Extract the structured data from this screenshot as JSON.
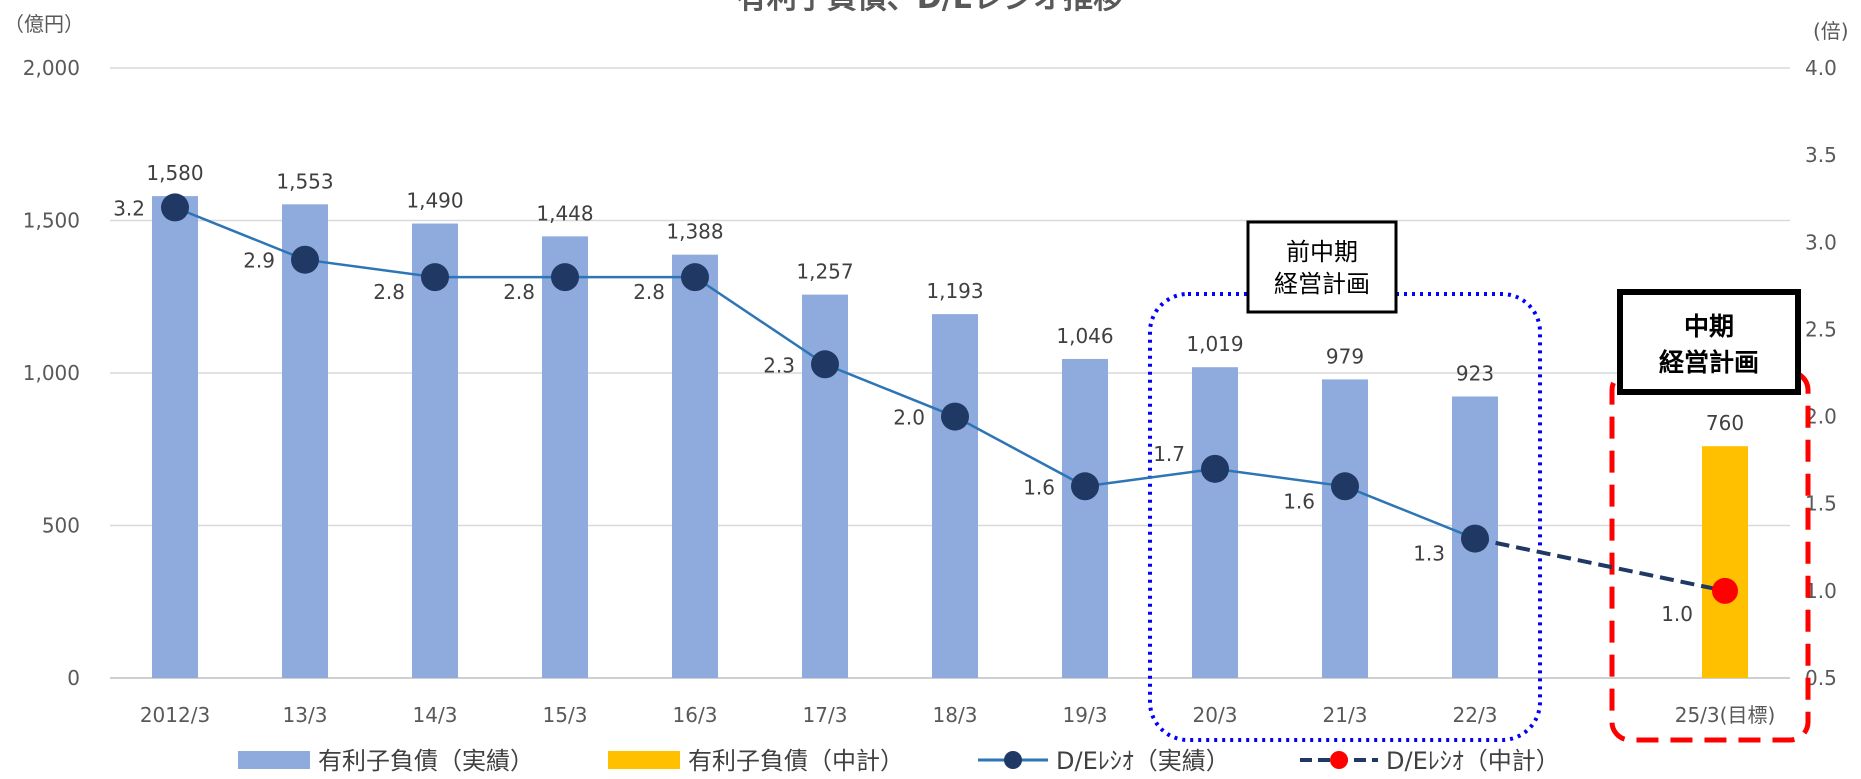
{
  "chart_data": {
    "type": "bar",
    "title": "有利子負債、D/Eレシオ推移",
    "y_left_unit": "（億円）",
    "y_right_unit": "(倍)",
    "y_left_ticks": [
      "0",
      "500",
      "1,000",
      "1,500",
      "2,000"
    ],
    "y_right_ticks": [
      "0.5",
      "1.0",
      "1.5",
      "2.0",
      "2.5",
      "3.0",
      "3.5",
      "4.0"
    ],
    "ylim_left": [
      0,
      2000
    ],
    "ylim_right": [
      0.5,
      4.0
    ],
    "grid": true,
    "categories": [
      "2012/3",
      "13/3",
      "14/3",
      "15/3",
      "16/3",
      "17/3",
      "18/3",
      "19/3",
      "20/3",
      "21/3",
      "22/3",
      "25/3(目標)"
    ],
    "series": [
      {
        "name": "有利子負債（実績）",
        "kind": "bar",
        "axis": "left",
        "color": "#8faadc",
        "values": [
          1580,
          1553,
          1490,
          1448,
          1388,
          1257,
          1193,
          1046,
          1019,
          979,
          923,
          null
        ],
        "labels": [
          "1,580",
          "1,553",
          "1,490",
          "1,448",
          "1,388",
          "1,257",
          "1,193",
          "1,046",
          "1,019",
          "979",
          "923",
          ""
        ]
      },
      {
        "name": "有利子負債（中計）",
        "kind": "bar",
        "axis": "left",
        "color": "#ffc000",
        "values": [
          null,
          null,
          null,
          null,
          null,
          null,
          null,
          null,
          null,
          null,
          null,
          760
        ],
        "labels": [
          "",
          "",
          "",
          "",
          "",
          "",
          "",
          "",
          "",
          "",
          "",
          "760"
        ]
      },
      {
        "name": "D/Eﾚｼｵ（実績）",
        "kind": "line",
        "axis": "right",
        "color": "#1f3864",
        "line_color": "#2e75b6",
        "values": [
          3.2,
          2.9,
          2.8,
          2.8,
          2.8,
          2.3,
          2.0,
          1.6,
          1.7,
          1.6,
          1.3,
          null
        ],
        "labels": [
          "3.2",
          "2.9",
          "2.8",
          "2.8",
          "2.8",
          "2.3",
          "2.0",
          "1.6",
          "1.7",
          "1.6",
          "1.3",
          ""
        ]
      },
      {
        "name": "D/Eﾚｼｵ（中計）",
        "kind": "line-dashed",
        "axis": "right",
        "color": "#ff0000",
        "line_color": "#1f3864",
        "values": [
          null,
          null,
          null,
          null,
          null,
          null,
          null,
          null,
          null,
          null,
          1.3,
          1.0
        ],
        "labels": [
          "",
          "",
          "",
          "",
          "",
          "",
          "",
          "",
          "",
          "",
          "",
          "1.0"
        ]
      }
    ],
    "annotations": [
      {
        "text_lines": [
          "前中期",
          "経営計画"
        ],
        "style": "blue-dotted-box",
        "color": "#0000ff"
      },
      {
        "text_lines": [
          "中期",
          "経営計画"
        ],
        "style": "red-dashed-box",
        "color": "#ff0000"
      }
    ],
    "legend": "bottom"
  }
}
